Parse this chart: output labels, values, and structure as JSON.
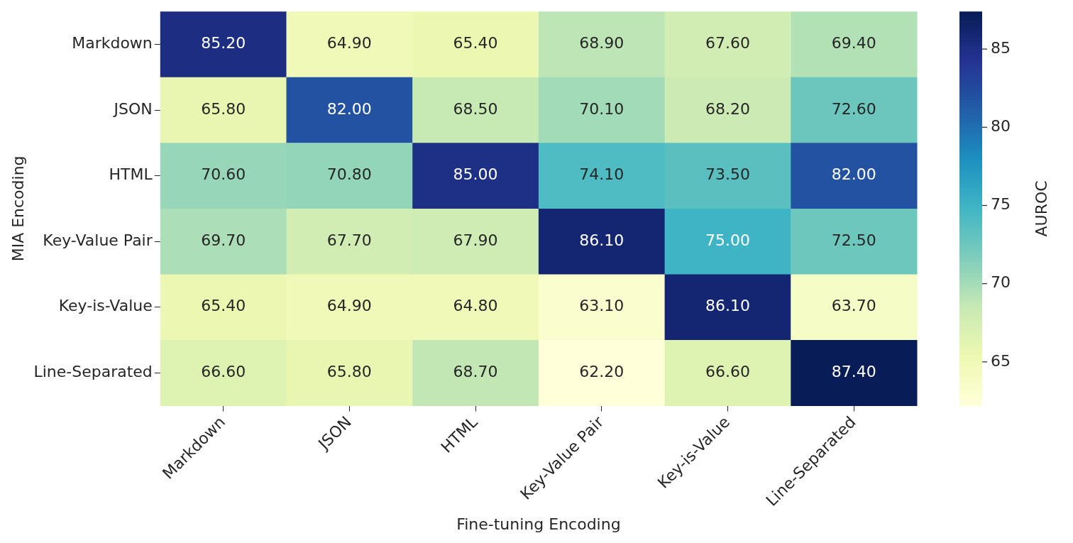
{
  "chart_data": {
    "type": "heatmap",
    "xlabel": "Fine-tuning Encoding",
    "ylabel": "MIA Encoding",
    "clabel": "AUROC",
    "categories": [
      "Markdown",
      "JSON",
      "HTML",
      "Key-Value Pair",
      "Key-is-Value",
      "Line-Separated"
    ],
    "y_categories": [
      "Markdown",
      "JSON",
      "HTML",
      "Key-Value Pair",
      "Key-is-Value",
      "Line-Separated"
    ],
    "cells": [
      [
        85.2,
        64.9,
        65.4,
        68.9,
        67.6,
        69.4
      ],
      [
        65.8,
        82.0,
        68.5,
        70.1,
        68.2,
        72.6
      ],
      [
        70.6,
        70.8,
        85.0,
        74.1,
        73.5,
        82.0
      ],
      [
        69.7,
        67.7,
        67.9,
        86.1,
        75.0,
        72.5
      ],
      [
        65.4,
        64.9,
        64.8,
        63.1,
        86.1,
        63.7
      ],
      [
        66.6,
        65.8,
        68.7,
        62.2,
        66.6,
        87.4
      ]
    ],
    "cell_labels": [
      [
        "85.20",
        "64.90",
        "65.40",
        "68.90",
        "67.60",
        "69.40"
      ],
      [
        "65.80",
        "82.00",
        "68.50",
        "70.10",
        "68.20",
        "72.60"
      ],
      [
        "70.60",
        "70.80",
        "85.00",
        "74.10",
        "73.50",
        "82.00"
      ],
      [
        "69.70",
        "67.70",
        "67.90",
        "86.10",
        "75.00",
        "72.50"
      ],
      [
        "65.40",
        "64.90",
        "64.80",
        "63.10",
        "86.10",
        "63.70"
      ],
      [
        "66.60",
        "65.80",
        "68.70",
        "62.20",
        "66.60",
        "87.40"
      ]
    ],
    "clim": [
      62.2,
      87.4
    ],
    "cticks": [
      65,
      70,
      75,
      80,
      85
    ]
  }
}
